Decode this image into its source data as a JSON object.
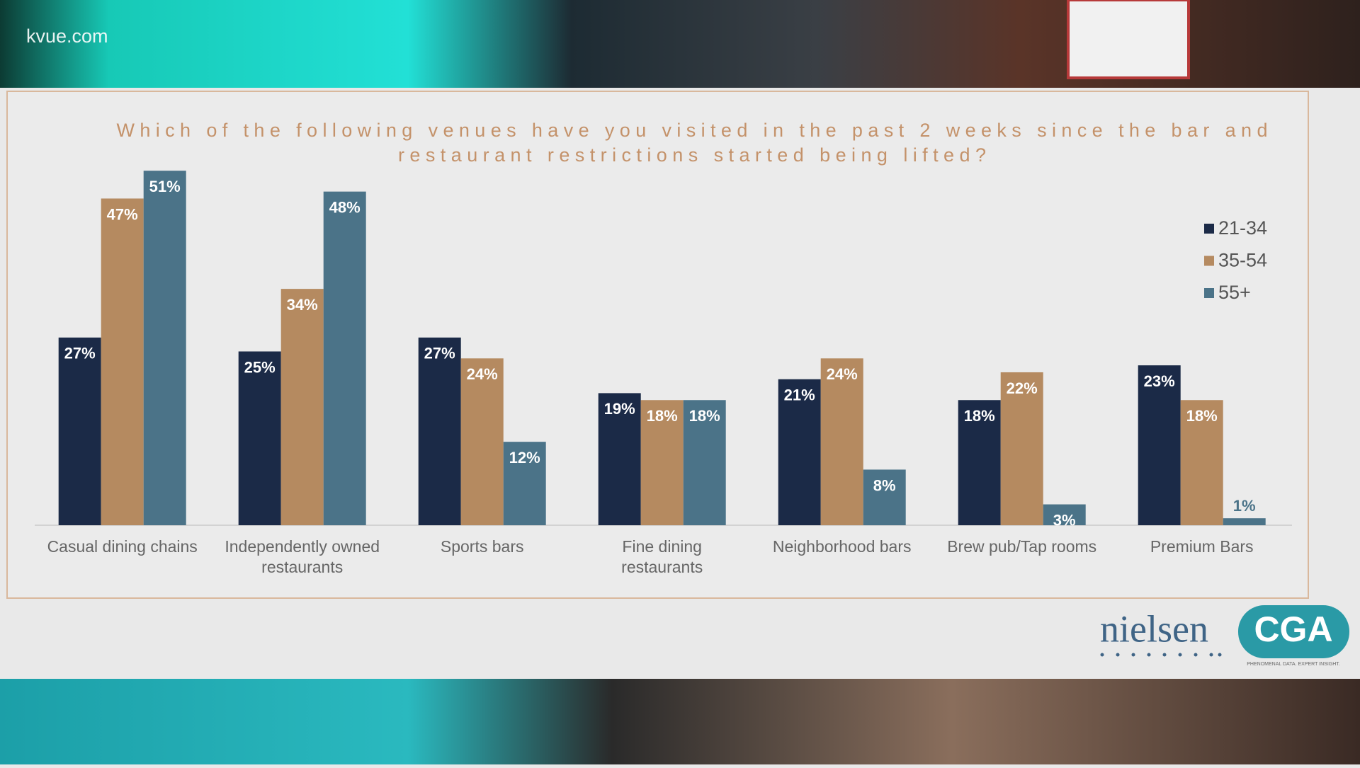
{
  "watermark": "kvue.com",
  "logos": {
    "nielsen": "nielsen",
    "cga": "CGA",
    "cga_tagline": "PHENOMENAL DATA. EXPERT INSIGHT."
  },
  "chart_data": {
    "type": "bar",
    "title": [
      "Which of the following venues have you visited in the past 2 weeks since the bar and",
      "restaurant restrictions started being lifted?"
    ],
    "categories": [
      "Casual dining chains",
      "Independently owned\nrestaurants",
      "Sports bars",
      "Fine dining\nrestaurants",
      "Neighborhood bars",
      "Brew pub/Tap rooms",
      "Premium Bars"
    ],
    "series": [
      {
        "name": "21-34",
        "color": "#1b2a47",
        "values": [
          27,
          25,
          27,
          19,
          21,
          18,
          23
        ],
        "value_labels": [
          "27%",
          "25%",
          "27%",
          "19%",
          "21%",
          "18%",
          "23%"
        ]
      },
      {
        "name": "35-54",
        "color": "#b58a60",
        "values": [
          47,
          34,
          24,
          18,
          24,
          22,
          18
        ],
        "value_labels": [
          "47%",
          "34%",
          "24%",
          "18%",
          "24%",
          "22%",
          "18%"
        ]
      },
      {
        "name": "55+",
        "color": "#4b7388",
        "values": [
          51,
          48,
          12,
          18,
          8,
          3,
          1
        ],
        "value_labels": [
          "51%",
          "48%",
          "12%",
          "18%",
          "8%",
          "3%",
          "1%"
        ]
      }
    ],
    "legend": "top-right",
    "grid": false
  }
}
